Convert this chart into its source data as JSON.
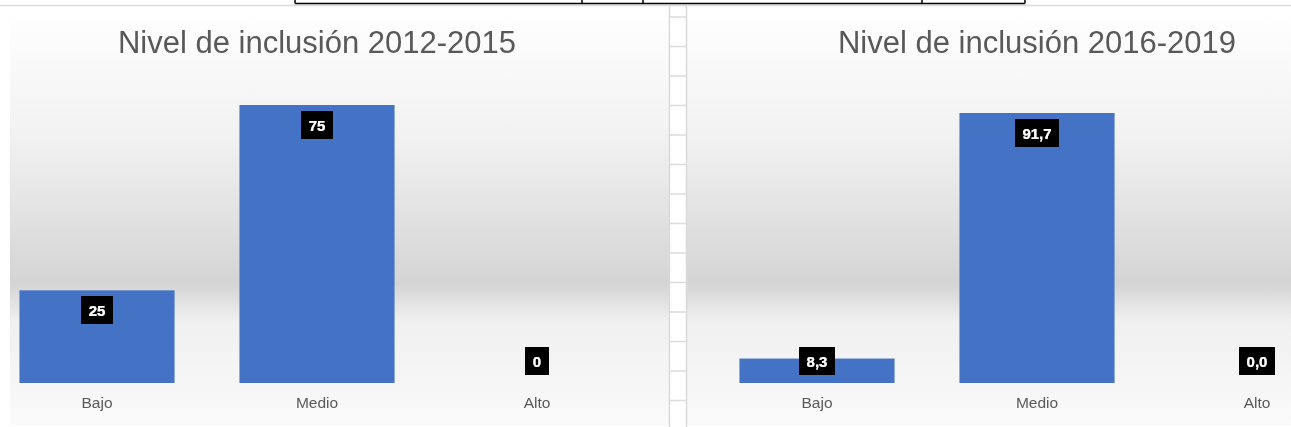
{
  "chart_data": [
    {
      "type": "bar",
      "title": "Nivel de inclusión 2012-2015",
      "categories": [
        "Bajo",
        "Medio",
        "Alto"
      ],
      "values": [
        25,
        75,
        0
      ],
      "color": "#4472c4",
      "data_labels": true
    },
    {
      "type": "bar",
      "title": "Nivel de inclusión 2016-2019",
      "categories": [
        "Bajo",
        "Medio",
        "Alto"
      ],
      "values": [
        8.3,
        91.7,
        0
      ],
      "color": "#4472c4",
      "value_labels": [
        "8,3",
        "91,7",
        "0,0"
      ]
    }
  ]
}
